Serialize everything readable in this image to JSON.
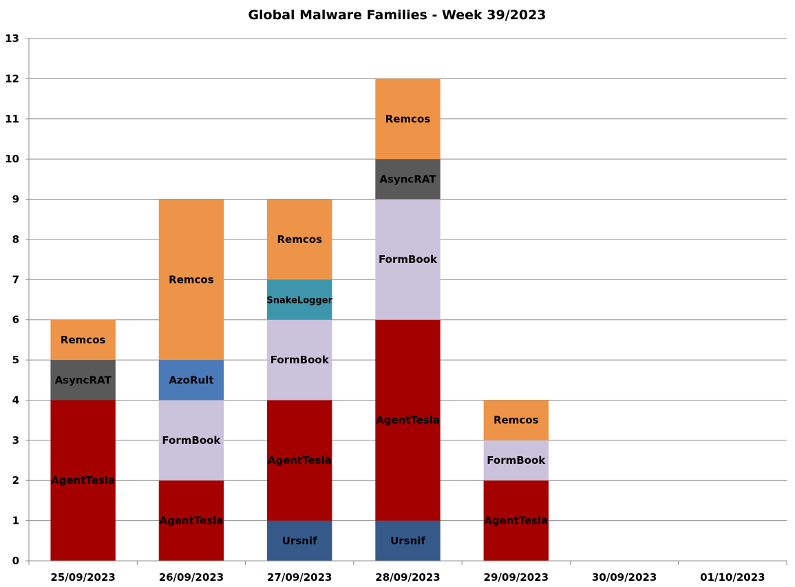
{
  "chart_data": {
    "type": "bar",
    "stacked": true,
    "title": "Global Malware Families - Week 39/2023",
    "xlabel": "",
    "ylabel": "",
    "ylim": [
      0,
      13
    ],
    "yticks": [
      "0",
      "1",
      "2",
      "3",
      "4",
      "5",
      "6",
      "7",
      "8",
      "9",
      "10",
      "11",
      "12",
      "13"
    ],
    "grid": true,
    "categories": [
      "25/09/2023",
      "26/09/2023",
      "27/09/2023",
      "28/09/2023",
      "29/09/2023",
      "30/09/2023",
      "01/10/2023"
    ],
    "colors": {
      "Ursnif": "#355a8a",
      "AgentTesla": "#a50000",
      "FormBook": "#cbc2dc",
      "AzoRult": "#4a7ab8",
      "AsyncRAT": "#595959",
      "SnakeLogger": "#3d96ac",
      "Remcos": "#ee9448"
    },
    "stacks": [
      [
        {
          "family": "AgentTesla",
          "value": 4
        },
        {
          "family": "AsyncRAT",
          "value": 1
        },
        {
          "family": "Remcos",
          "value": 1
        }
      ],
      [
        {
          "family": "AgentTesla",
          "value": 2
        },
        {
          "family": "FormBook",
          "value": 2
        },
        {
          "family": "AzoRult",
          "value": 1
        },
        {
          "family": "Remcos",
          "value": 4
        }
      ],
      [
        {
          "family": "Ursnif",
          "value": 1
        },
        {
          "family": "AgentTesla",
          "value": 3
        },
        {
          "family": "FormBook",
          "value": 2
        },
        {
          "family": "SnakeLogger",
          "value": 1
        },
        {
          "family": "Remcos",
          "value": 2
        }
      ],
      [
        {
          "family": "Ursnif",
          "value": 1
        },
        {
          "family": "AgentTesla",
          "value": 5
        },
        {
          "family": "FormBook",
          "value": 3
        },
        {
          "family": "AsyncRAT",
          "value": 1
        },
        {
          "family": "Remcos",
          "value": 2
        }
      ],
      [
        {
          "family": "AgentTesla",
          "value": 2
        },
        {
          "family": "FormBook",
          "value": 1
        },
        {
          "family": "Remcos",
          "value": 1
        }
      ],
      [],
      []
    ]
  }
}
